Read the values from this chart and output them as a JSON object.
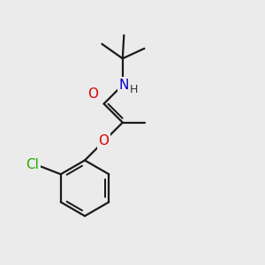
{
  "bg_color": "#ebebeb",
  "bond_color": "#1a1a1a",
  "bond_width": 1.6,
  "atom_colors": {
    "O": "#dd0000",
    "N": "#0000cc",
    "Cl": "#22aa00",
    "C": "#1a1a1a",
    "H": "#333333"
  },
  "font_size_atoms": 11,
  "font_size_H": 9
}
